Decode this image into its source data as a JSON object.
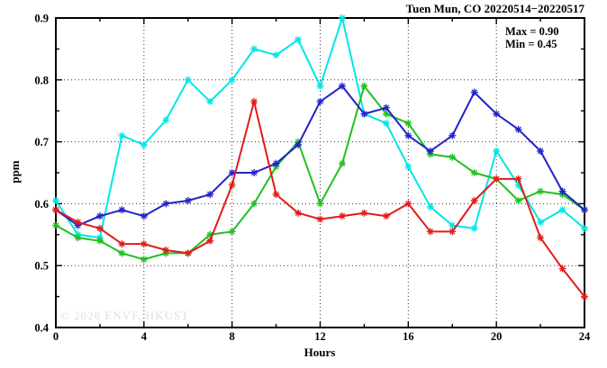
{
  "figure": {
    "title": "Tuen Mun, CO 20220514−20220517",
    "annotation": {
      "max": "Max = 0.90",
      "min": "Min = 0.45"
    },
    "watermark": "© 2026 ENVF, HKUST"
  },
  "chart_data": {
    "type": "line",
    "title": "Tuen Mun, CO 20220514−20220517",
    "xlabel": "Hours",
    "ylabel": "ppm",
    "xlim": [
      0,
      24
    ],
    "ylim": [
      0.4,
      0.9
    ],
    "x_major_ticks": [
      0,
      4,
      8,
      12,
      16,
      20,
      24
    ],
    "x_tick_labels": [
      "0",
      "4",
      "8",
      "12",
      "16",
      "20",
      "24"
    ],
    "x_minor_step": 2,
    "y_major_ticks": [
      0.4,
      0.5,
      0.6,
      0.7,
      0.8,
      0.9
    ],
    "y_tick_labels": [
      "0.4",
      "0.5",
      "0.6",
      "0.7",
      "0.8",
      "0.9"
    ],
    "y_minor_step": 0.05,
    "grid": "dotted-at-major-ticks",
    "legend_position": "none",
    "marker": "asterisk",
    "annotations": [
      "Max = 0.90",
      "Min = 0.45"
    ],
    "stats": {
      "max": 0.9,
      "min": 0.45
    },
    "x": [
      0,
      1,
      2,
      3,
      4,
      5,
      6,
      7,
      8,
      9,
      10,
      11,
      12,
      13,
      14,
      15,
      16,
      17,
      18,
      19,
      20,
      21,
      22,
      23,
      24
    ],
    "series": [
      {
        "name": "cyan-day-line",
        "color": "#00E5E5",
        "values": [
          0.605,
          0.55,
          0.545,
          0.71,
          0.695,
          0.735,
          0.8,
          0.765,
          0.8,
          0.85,
          0.84,
          0.865,
          0.79,
          0.9,
          0.745,
          0.73,
          0.66,
          0.595,
          0.565,
          0.56,
          0.685,
          0.63,
          0.57,
          0.59,
          0.56
        ]
      },
      {
        "name": "green-day-line",
        "color": "#20C020",
        "values": [
          0.565,
          0.545,
          0.54,
          0.52,
          0.51,
          0.52,
          0.52,
          0.55,
          0.555,
          0.6,
          0.66,
          0.7,
          0.6,
          0.665,
          0.79,
          0.745,
          0.73,
          0.68,
          0.675,
          0.65,
          0.64,
          0.605,
          0.62,
          0.615,
          0.59
        ]
      },
      {
        "name": "blue-day-line",
        "color": "#2222CC",
        "values": [
          0.59,
          0.565,
          0.58,
          0.59,
          0.58,
          0.6,
          0.605,
          0.615,
          0.65,
          0.65,
          0.665,
          0.695,
          0.765,
          0.79,
          0.745,
          0.755,
          0.71,
          0.685,
          0.71,
          0.78,
          0.745,
          0.72,
          0.685,
          0.62,
          0.59
        ]
      },
      {
        "name": "red-day-line",
        "color": "#E21B1B",
        "values": [
          0.59,
          0.57,
          0.56,
          0.535,
          0.535,
          0.525,
          0.52,
          0.54,
          0.63,
          0.765,
          0.615,
          0.585,
          0.575,
          0.58,
          0.585,
          0.58,
          0.6,
          0.555,
          0.555,
          0.605,
          0.64,
          0.64,
          0.545,
          0.495,
          0.45
        ]
      }
    ]
  },
  "style": {
    "grid_color": "#333333",
    "axis_color": "#000000",
    "background": "#ffffff"
  }
}
